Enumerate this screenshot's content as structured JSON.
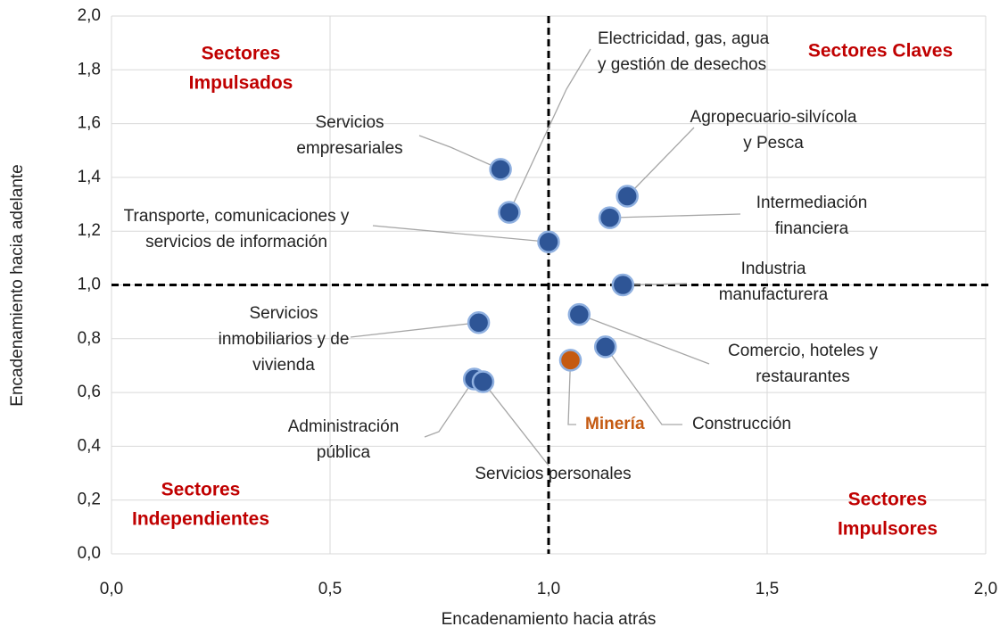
{
  "chart_data": {
    "type": "scatter",
    "x_label": "Encadenamiento hacia atrás",
    "y_label": "Encadenamiento hacia adelante",
    "xlim": [
      0,
      2
    ],
    "ylim": [
      0,
      2
    ],
    "xticks": [
      {
        "value": 0,
        "label": "0,0"
      },
      {
        "value": 0.5,
        "label": "0,5"
      },
      {
        "value": 1,
        "label": "1,0"
      },
      {
        "value": 1.5,
        "label": "1,5"
      },
      {
        "value": 2,
        "label": "2,0"
      }
    ],
    "yticks": [
      {
        "value": 0,
        "label": "0,0"
      },
      {
        "value": 0.2,
        "label": "0,2"
      },
      {
        "value": 0.4,
        "label": "0,4"
      },
      {
        "value": 0.6,
        "label": "0,6"
      },
      {
        "value": 0.8,
        "label": "0,8"
      },
      {
        "value": 1,
        "label": "1,0"
      },
      {
        "value": 1.2,
        "label": "1,2"
      },
      {
        "value": 1.4,
        "label": "1,4"
      },
      {
        "value": 1.6,
        "label": "1,6"
      },
      {
        "value": 1.8,
        "label": "1,8"
      },
      {
        "value": 2,
        "label": "2,0"
      }
    ],
    "grid": true,
    "reference_lines": {
      "x": 1,
      "y": 1
    },
    "points": [
      {
        "label": [
          "Servicios",
          "empresariales"
        ],
        "x": 0.89,
        "y": 1.43,
        "color": "#2e5596"
      },
      {
        "label": [
          "Electricidad, gas, agua",
          "y gestión de desechos"
        ],
        "x": 0.91,
        "y": 1.27,
        "color": "#2e5596"
      },
      {
        "label": [
          "Transporte, comunicaciones y",
          "servicios de información"
        ],
        "x": 1.0,
        "y": 1.16,
        "color": "#2e5596"
      },
      {
        "label": [
          "Agropecuario-silvícola",
          "y Pesca"
        ],
        "x": 1.18,
        "y": 1.33,
        "color": "#2e5596"
      },
      {
        "label": [
          "Intermediación",
          "financiera"
        ],
        "x": 1.14,
        "y": 1.25,
        "color": "#2e5596"
      },
      {
        "label": [
          "Industria",
          "manufacturera"
        ],
        "x": 1.17,
        "y": 1.0,
        "color": "#2e5596"
      },
      {
        "label": [
          "Servicios",
          "inmobiliarios y de",
          "vivienda"
        ],
        "x": 0.84,
        "y": 0.86,
        "color": "#2e5596"
      },
      {
        "label": [
          "Comercio, hoteles y",
          "restaurantes"
        ],
        "x": 1.07,
        "y": 0.89,
        "color": "#2e5596"
      },
      {
        "label": [
          "Construcción"
        ],
        "x": 1.13,
        "y": 0.77,
        "color": "#2e5596"
      },
      {
        "label": [
          "Minería"
        ],
        "x": 1.05,
        "y": 0.72,
        "color": "#c55a11"
      },
      {
        "label": [
          "Administración",
          "pública"
        ],
        "x": 0.83,
        "y": 0.65,
        "color": "#2e5596"
      },
      {
        "label": [
          "Servicios personales"
        ],
        "x": 0.85,
        "y": 0.64,
        "color": "#2e5596"
      }
    ],
    "quadrant_labels": [
      {
        "lines": [
          "Sectores",
          "Impulsados"
        ]
      },
      {
        "lines": [
          "Sectores Claves"
        ]
      },
      {
        "lines": [
          "Sectores",
          "Independientes"
        ]
      },
      {
        "lines": [
          "Sectores",
          "Impulsores"
        ]
      }
    ],
    "quadrant_color": "#c00000"
  }
}
